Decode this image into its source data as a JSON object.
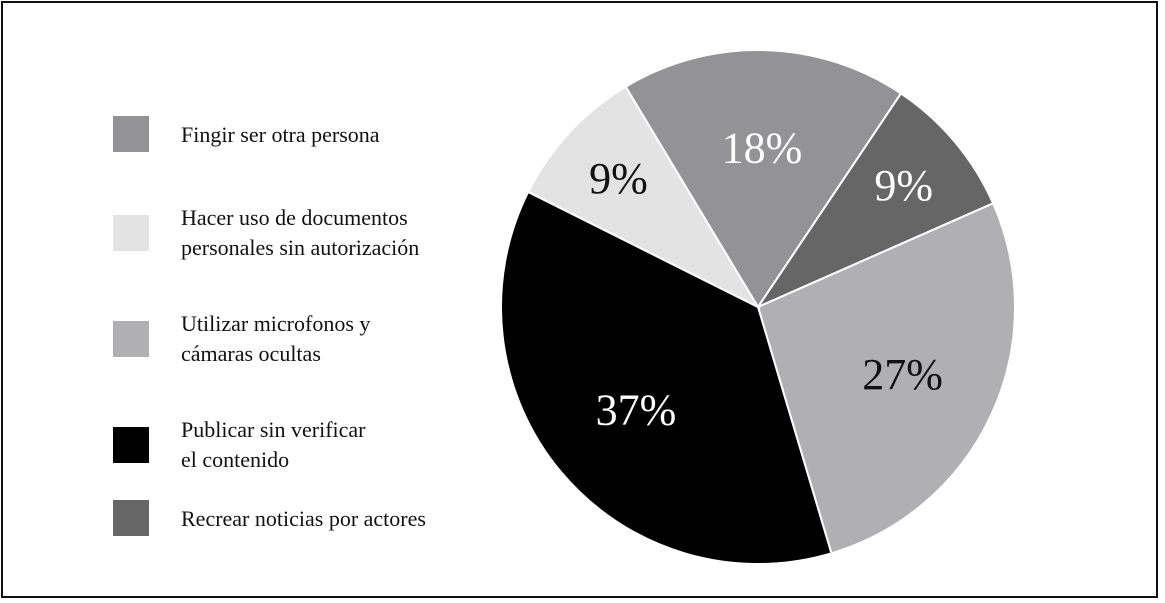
{
  "chart_data": {
    "type": "pie",
    "title": "",
    "legend_position": "left",
    "slices": [
      {
        "label": "Fingir ser otra persona",
        "value": 18,
        "display": "18%",
        "color": "#939395",
        "label_color": "#ffffff"
      },
      {
        "label": "Hacer uso de documentos\npersonales sin autorización",
        "value": 9,
        "display": "9%",
        "color": "#e3e3e4",
        "label_color": "#111111"
      },
      {
        "label": "Utilizar microfonos y\ncámaras ocultas",
        "value": 27,
        "display": "27%",
        "color": "#b0b0b2",
        "label_color": "#111111"
      },
      {
        "label": "Publicar sin verificar\nel contenido",
        "value": 37,
        "display": "37%",
        "color": "#000000",
        "label_color": "#ffffff"
      },
      {
        "label": "Recrear noticias por actores",
        "value": 9,
        "display": "9%",
        "color": "#666667",
        "label_color": "#ffffff"
      }
    ],
    "pie_order": [
      0,
      4,
      2,
      3,
      1
    ]
  }
}
